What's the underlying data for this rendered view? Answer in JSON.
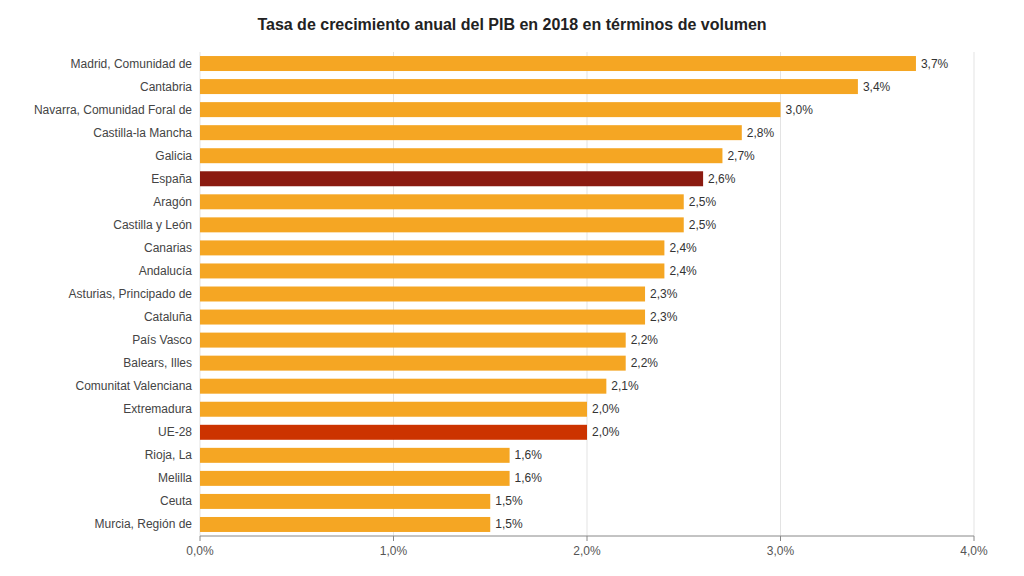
{
  "chart_data": {
    "type": "bar",
    "orientation": "horizontal",
    "title": "Tasa de crecimiento anual del PIB en 2018 en términos de volumen",
    "categories": [
      "Murcia, Región de",
      "Ceuta",
      "Melilla",
      "Rioja, La",
      "UE-28",
      "Extremadura",
      "Comunitat Valenciana",
      "Balears, Illes",
      "País Vasco",
      "Cataluña",
      "Asturias, Principado de",
      "Andalucía",
      "Canarias",
      "Castilla y León",
      "Aragón",
      "España",
      "Galicia",
      "Castilla-la Mancha",
      "Navarra, Comunidad Foral de",
      "Cantabria",
      "Madrid, Comunidad de"
    ],
    "values": [
      1.5,
      1.5,
      1.6,
      1.6,
      2.0,
      2.0,
      2.1,
      2.2,
      2.2,
      2.3,
      2.3,
      2.4,
      2.4,
      2.5,
      2.5,
      2.6,
      2.7,
      2.8,
      3.0,
      3.4,
      3.7
    ],
    "value_labels": [
      "1,5%",
      "1,5%",
      "1,6%",
      "1,6%",
      "2,0%",
      "2,0%",
      "2,1%",
      "2,2%",
      "2,2%",
      "2,3%",
      "2,3%",
      "2,4%",
      "2,4%",
      "2,5%",
      "2,5%",
      "2,6%",
      "2,7%",
      "2,8%",
      "3,0%",
      "3,4%",
      "3,7%"
    ],
    "colors": [
      "#F5A623",
      "#F5A623",
      "#F5A623",
      "#F5A623",
      "#CC3300",
      "#F5A623",
      "#F5A623",
      "#F5A623",
      "#F5A623",
      "#F5A623",
      "#F5A623",
      "#F5A623",
      "#F5A623",
      "#F5A623",
      "#F5A623",
      "#8B1A10",
      "#F5A623",
      "#F5A623",
      "#F5A623",
      "#F5A623",
      "#F5A623"
    ],
    "xlim": [
      0,
      4.0
    ],
    "xticks": [
      {
        "value": 0.0,
        "label": "0,0%"
      },
      {
        "value": 1.0,
        "label": "1,0%"
      },
      {
        "value": 2.0,
        "label": "2,0%"
      },
      {
        "value": 3.0,
        "label": "3,0%"
      },
      {
        "value": 4.0,
        "label": "4,0%"
      }
    ],
    "grid": true,
    "data_labels": true
  }
}
